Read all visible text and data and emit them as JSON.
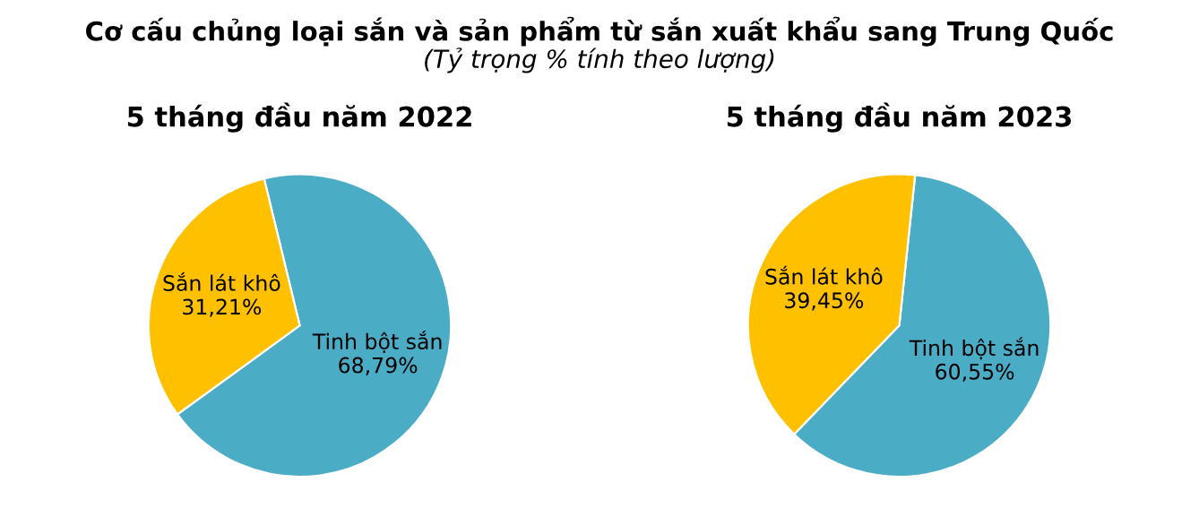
{
  "chart_data": [
    {
      "type": "pie",
      "title": "5 tháng đầu năm 2022",
      "annotations": [
        "Cơ cấu chủng loại sắn và sản phẩm từ sắn xuất khẩu sang Trung Quốc",
        "(Tỷ trọng % tính theo lượng)"
      ],
      "categories": [
        "Tinh bột sắn",
        "Sắn lát khô"
      ],
      "values": [
        68.79,
        31.21
      ],
      "value_labels": [
        "68,79%",
        "31,21%"
      ],
      "colors": [
        "#4bacc6",
        "#ffc000"
      ]
    },
    {
      "type": "pie",
      "title": "5 tháng đầu năm 2023",
      "categories": [
        "Tinh bột sắn",
        "Sắn lát khô"
      ],
      "values": [
        60.55,
        39.45
      ],
      "value_labels": [
        "60,55%",
        "39,45%"
      ],
      "colors": [
        "#4bacc6",
        "#ffc000"
      ]
    }
  ]
}
